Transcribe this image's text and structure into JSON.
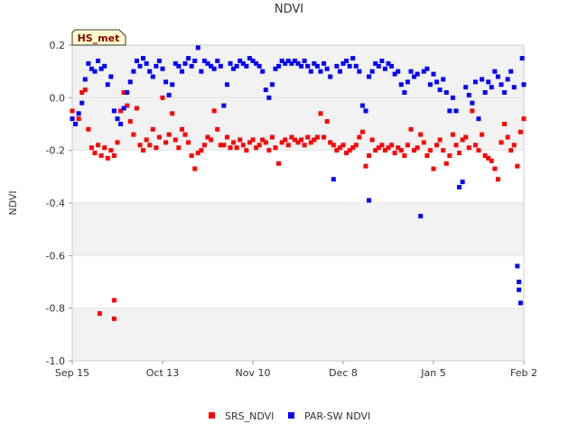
{
  "chart_data": {
    "type": "scatter",
    "title": "NDVI",
    "ylabel": "NDVI",
    "xlabel": "",
    "ylim": [
      -1.0,
      0.2
    ],
    "y_ticks": [
      "-1.0",
      "-0.8",
      "-0.6",
      "-0.4",
      "-0.2",
      "0.0",
      "0.2"
    ],
    "y_tick_values": [
      -1.0,
      -0.8,
      -0.6,
      -0.4,
      -0.2,
      0.0,
      0.2
    ],
    "x_range_days": [
      0,
      140
    ],
    "x_ticks": [
      {
        "label": "Sep 15",
        "day": 0
      },
      {
        "label": "Oct 13",
        "day": 28
      },
      {
        "label": "Nov 10",
        "day": 56
      },
      {
        "label": "Dec 8",
        "day": 84
      },
      {
        "label": "Jan 5",
        "day": 112
      },
      {
        "label": "Feb 2",
        "day": 140
      }
    ],
    "grid_bands": [
      [
        -0.2,
        0.2
      ],
      [
        -0.6,
        -0.4
      ],
      [
        -1.0,
        -0.8
      ]
    ],
    "series": [
      {
        "name": "SRS_NDVI",
        "color": "#ff0000",
        "points": [
          [
            0,
            -0.05
          ],
          [
            1,
            -0.1
          ],
          [
            2,
            -0.08
          ],
          [
            3,
            0.02
          ],
          [
            4,
            0.03
          ],
          [
            5,
            -0.12
          ],
          [
            6,
            -0.19
          ],
          [
            7,
            -0.21
          ],
          [
            8,
            -0.18
          ],
          [
            8.5,
            -0.82
          ],
          [
            9,
            -0.22
          ],
          [
            10,
            -0.19
          ],
          [
            11,
            -0.23
          ],
          [
            12,
            -0.2
          ],
          [
            13,
            -0.22
          ],
          [
            13,
            -0.77
          ],
          [
            13,
            -0.84
          ],
          [
            14,
            -0.17
          ],
          [
            15,
            -0.05
          ],
          [
            16,
            0.02
          ],
          [
            17,
            -0.03
          ],
          [
            18,
            -0.09
          ],
          [
            19,
            -0.14
          ],
          [
            20,
            -0.04
          ],
          [
            21,
            -0.18
          ],
          [
            22,
            -0.2
          ],
          [
            23,
            -0.16
          ],
          [
            24,
            -0.18
          ],
          [
            25,
            -0.12
          ],
          [
            26,
            -0.19
          ],
          [
            27,
            -0.15
          ],
          [
            28,
            0.0
          ],
          [
            29,
            -0.17
          ],
          [
            30,
            -0.14
          ],
          [
            31,
            -0.06
          ],
          [
            32,
            -0.16
          ],
          [
            33,
            -0.19
          ],
          [
            34,
            -0.12
          ],
          [
            35,
            -0.14
          ],
          [
            36,
            -0.17
          ],
          [
            37,
            -0.22
          ],
          [
            38,
            -0.27
          ],
          [
            39,
            -0.21
          ],
          [
            40,
            -0.2
          ],
          [
            41,
            -0.18
          ],
          [
            42,
            -0.15
          ],
          [
            43,
            -0.16
          ],
          [
            44,
            -0.05
          ],
          [
            45,
            -0.12
          ],
          [
            46,
            -0.18
          ],
          [
            47,
            -0.18
          ],
          [
            48,
            -0.15
          ],
          [
            49,
            -0.19
          ],
          [
            50,
            -0.17
          ],
          [
            51,
            -0.19
          ],
          [
            52,
            -0.16
          ],
          [
            53,
            -0.18
          ],
          [
            54,
            -0.2
          ],
          [
            55,
            -0.17
          ],
          [
            56,
            -0.16
          ],
          [
            57,
            -0.19
          ],
          [
            58,
            -0.18
          ],
          [
            59,
            -0.16
          ],
          [
            60,
            -0.17
          ],
          [
            61,
            -0.2
          ],
          [
            62,
            -0.15
          ],
          [
            63,
            -0.19
          ],
          [
            64,
            -0.25
          ],
          [
            65,
            -0.17
          ],
          [
            66,
            -0.16
          ],
          [
            67,
            -0.18
          ],
          [
            68,
            -0.15
          ],
          [
            69,
            -0.16
          ],
          [
            70,
            -0.17
          ],
          [
            71,
            -0.16
          ],
          [
            72,
            -0.18
          ],
          [
            73,
            -0.15
          ],
          [
            74,
            -0.17
          ],
          [
            75,
            -0.16
          ],
          [
            76,
            -0.15
          ],
          [
            77,
            -0.06
          ],
          [
            78,
            -0.15
          ],
          [
            79,
            -0.09
          ],
          [
            80,
            -0.17
          ],
          [
            81,
            -0.18
          ],
          [
            82,
            -0.2
          ],
          [
            83,
            -0.19
          ],
          [
            84,
            -0.18
          ],
          [
            85,
            -0.21
          ],
          [
            86,
            -0.2
          ],
          [
            87,
            -0.19
          ],
          [
            88,
            -0.18
          ],
          [
            89,
            -0.15
          ],
          [
            90,
            -0.13
          ],
          [
            91,
            -0.26
          ],
          [
            92,
            -0.22
          ],
          [
            93,
            -0.16
          ],
          [
            94,
            -0.2
          ],
          [
            95,
            -0.19
          ],
          [
            96,
            -0.18
          ],
          [
            97,
            -0.2
          ],
          [
            98,
            -0.19
          ],
          [
            99,
            -0.18
          ],
          [
            100,
            -0.21
          ],
          [
            101,
            -0.19
          ],
          [
            102,
            -0.2
          ],
          [
            103,
            -0.22
          ],
          [
            104,
            -0.18
          ],
          [
            105,
            -0.12
          ],
          [
            106,
            -0.2
          ],
          [
            107,
            -0.19
          ],
          [
            108,
            -0.14
          ],
          [
            109,
            -0.17
          ],
          [
            110,
            -0.22
          ],
          [
            111,
            -0.2
          ],
          [
            112,
            -0.27
          ],
          [
            113,
            -0.18
          ],
          [
            114,
            -0.16
          ],
          [
            115,
            -0.2
          ],
          [
            116,
            -0.25
          ],
          [
            117,
            -0.22
          ],
          [
            118,
            -0.14
          ],
          [
            119,
            -0.18
          ],
          [
            120,
            -0.21
          ],
          [
            121,
            -0.16
          ],
          [
            122,
            -0.15
          ],
          [
            123,
            -0.19
          ],
          [
            124,
            -0.05
          ],
          [
            125,
            -0.18
          ],
          [
            126,
            -0.2
          ],
          [
            127,
            -0.14
          ],
          [
            128,
            -0.22
          ],
          [
            129,
            -0.23
          ],
          [
            130,
            -0.24
          ],
          [
            131,
            -0.27
          ],
          [
            132,
            -0.31
          ],
          [
            133,
            -0.17
          ],
          [
            134,
            -0.1
          ],
          [
            135,
            -0.15
          ],
          [
            136,
            -0.2
          ],
          [
            137,
            -0.18
          ],
          [
            138,
            -0.26
          ],
          [
            139,
            -0.13
          ],
          [
            140,
            -0.08
          ]
        ]
      },
      {
        "name": "PAR-SW NDVI",
        "color": "#0000ff",
        "points": [
          [
            0,
            -0.08
          ],
          [
            1,
            -0.1
          ],
          [
            2,
            -0.06
          ],
          [
            3,
            -0.02
          ],
          [
            4,
            0.07
          ],
          [
            5,
            0.13
          ],
          [
            6,
            0.11
          ],
          [
            7,
            0.1
          ],
          [
            8,
            0.14
          ],
          [
            9,
            0.11
          ],
          [
            10,
            0.12
          ],
          [
            11,
            0.05
          ],
          [
            12,
            0.08
          ],
          [
            13,
            -0.05
          ],
          [
            14,
            -0.08
          ],
          [
            15,
            -0.1
          ],
          [
            16,
            -0.04
          ],
          [
            17,
            0.02
          ],
          [
            18,
            0.06
          ],
          [
            19,
            0.1
          ],
          [
            20,
            0.14
          ],
          [
            21,
            0.12
          ],
          [
            22,
            0.15
          ],
          [
            23,
            0.13
          ],
          [
            24,
            0.1
          ],
          [
            25,
            0.08
          ],
          [
            26,
            0.12
          ],
          [
            27,
            0.14
          ],
          [
            28,
            0.11
          ],
          [
            29,
            0.06
          ],
          [
            30,
            0.01
          ],
          [
            31,
            0.05
          ],
          [
            32,
            0.13
          ],
          [
            33,
            0.12
          ],
          [
            34,
            0.1
          ],
          [
            35,
            0.13
          ],
          [
            36,
            0.15
          ],
          [
            37,
            0.12
          ],
          [
            38,
            0.14
          ],
          [
            39,
            0.19
          ],
          [
            40,
            0.1
          ],
          [
            41,
            0.14
          ],
          [
            42,
            0.13
          ],
          [
            43,
            0.12
          ],
          [
            44,
            0.11
          ],
          [
            45,
            0.14
          ],
          [
            46,
            0.12
          ],
          [
            47,
            -0.03
          ],
          [
            48,
            0.05
          ],
          [
            49,
            0.13
          ],
          [
            50,
            0.11
          ],
          [
            51,
            0.12
          ],
          [
            52,
            0.14
          ],
          [
            53,
            0.13
          ],
          [
            54,
            0.12
          ],
          [
            55,
            0.15
          ],
          [
            56,
            0.14
          ],
          [
            57,
            0.13
          ],
          [
            58,
            0.12
          ],
          [
            59,
            0.1
          ],
          [
            60,
            0.03
          ],
          [
            61,
            0.0
          ],
          [
            62,
            0.05
          ],
          [
            63,
            0.11
          ],
          [
            64,
            0.12
          ],
          [
            65,
            0.14
          ],
          [
            66,
            0.13
          ],
          [
            67,
            0.14
          ],
          [
            68,
            0.13
          ],
          [
            69,
            0.14
          ],
          [
            70,
            0.13
          ],
          [
            71,
            0.12
          ],
          [
            72,
            0.14
          ],
          [
            73,
            0.12
          ],
          [
            74,
            0.1
          ],
          [
            75,
            0.13
          ],
          [
            76,
            0.12
          ],
          [
            77,
            0.1
          ],
          [
            78,
            0.13
          ],
          [
            79,
            0.11
          ],
          [
            80,
            0.08
          ],
          [
            81,
            -0.31
          ],
          [
            82,
            0.12
          ],
          [
            83,
            0.1
          ],
          [
            84,
            0.13
          ],
          [
            85,
            0.14
          ],
          [
            86,
            0.12
          ],
          [
            87,
            0.15
          ],
          [
            88,
            0.12
          ],
          [
            89,
            0.1
          ],
          [
            90,
            -0.03
          ],
          [
            91,
            -0.05
          ],
          [
            92,
            0.08
          ],
          [
            92,
            -0.39
          ],
          [
            93,
            0.1
          ],
          [
            94,
            0.13
          ],
          [
            95,
            0.12
          ],
          [
            96,
            0.14
          ],
          [
            97,
            0.11
          ],
          [
            98,
            0.13
          ],
          [
            99,
            0.12
          ],
          [
            100,
            0.09
          ],
          [
            101,
            0.1
          ],
          [
            102,
            0.05
          ],
          [
            103,
            0.02
          ],
          [
            104,
            0.06
          ],
          [
            105,
            0.1
          ],
          [
            106,
            0.08
          ],
          [
            107,
            0.09
          ],
          [
            108,
            -0.45
          ],
          [
            109,
            0.1
          ],
          [
            110,
            0.11
          ],
          [
            111,
            0.05
          ],
          [
            112,
            0.09
          ],
          [
            113,
            0.06
          ],
          [
            114,
            0.03
          ],
          [
            115,
            0.07
          ],
          [
            116,
            0.02
          ],
          [
            117,
            -0.05
          ],
          [
            118,
            0.0
          ],
          [
            119,
            -0.05
          ],
          [
            120,
            -0.34
          ],
          [
            121,
            -0.32
          ],
          [
            122,
            0.04
          ],
          [
            123,
            0.01
          ],
          [
            124,
            -0.02
          ],
          [
            125,
            0.06
          ],
          [
            126,
            -0.08
          ],
          [
            127,
            0.07
          ],
          [
            128,
            0.02
          ],
          [
            129,
            0.06
          ],
          [
            130,
            0.04
          ],
          [
            131,
            0.1
          ],
          [
            132,
            0.08
          ],
          [
            133,
            0.05
          ],
          [
            134,
            0.02
          ],
          [
            135,
            0.07
          ],
          [
            136,
            0.1
          ],
          [
            137,
            0.04
          ],
          [
            138,
            -0.64
          ],
          [
            138.5,
            -0.7
          ],
          [
            138.5,
            -0.73
          ],
          [
            139,
            -0.78
          ],
          [
            139.5,
            0.15
          ],
          [
            140,
            0.05
          ]
        ]
      }
    ],
    "legend_position": "bottom-center",
    "badge_text": "HS_met"
  }
}
